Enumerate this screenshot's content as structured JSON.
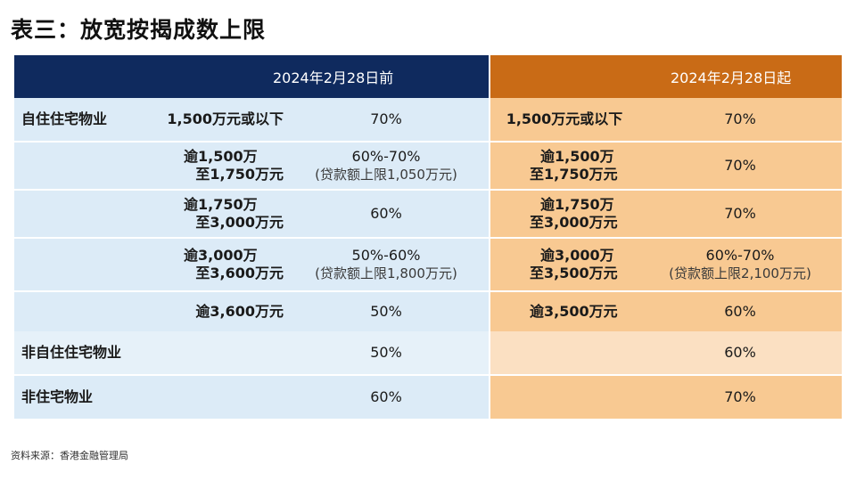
{
  "title": "表三：放宽按揭成数上限",
  "table": {
    "header_before": "2024年2月28日前",
    "header_after": "2024年2月28日起",
    "self_use": {
      "category": "自住住宅物业",
      "rows": [
        {
          "before_value": [
            "1,500万元或以下"
          ],
          "before_ltv": [
            "70%"
          ],
          "after_value": [
            "1,500万元或以下"
          ],
          "after_ltv": [
            "70%"
          ]
        },
        {
          "before_value": [
            "逾1,500万",
            "至1,750万元"
          ],
          "before_ltv": [
            "60%-70%",
            "(贷款额上限1,050万元)"
          ],
          "after_value": [
            "逾1,500万",
            "至1,750万元"
          ],
          "after_ltv": [
            "70%"
          ]
        },
        {
          "before_value": [
            "逾1,750万",
            "至3,000万元"
          ],
          "before_ltv": [
            "60%"
          ],
          "after_value": [
            "逾1,750万",
            "至3,000万元"
          ],
          "after_ltv": [
            "70%"
          ]
        },
        {
          "before_value": [
            "逾3,000万",
            "至3,600万元"
          ],
          "before_ltv": [
            "50%-60%",
            "(贷款额上限1,800万元)"
          ],
          "after_value": [
            "逾3,000万",
            "至3,500万元"
          ],
          "after_ltv": [
            "60%-70%",
            "(贷款额上限2,100万元)"
          ]
        },
        {
          "before_value": [
            "逾3,600万元"
          ],
          "before_ltv": [
            "50%"
          ],
          "after_value": [
            "逾3,500万元"
          ],
          "after_ltv": [
            "60%"
          ]
        }
      ]
    },
    "non_self_use": {
      "category": "非自住住宅物业",
      "before_ltv": "50%",
      "after_ltv": "60%"
    },
    "non_residential": {
      "category": "非住宅物业",
      "before_ltv": "60%",
      "after_ltv": "70%"
    }
  },
  "source": "资料来源：香港金融管理局",
  "colors": {
    "header_before_bg": "#0f2a5e",
    "header_after_bg": "#c96b16",
    "blue_row": "#dcebf7",
    "blue_row_light": "#e6f1f9",
    "orange_row": "#f8c992",
    "orange_row_light": "#fbe0c2"
  }
}
